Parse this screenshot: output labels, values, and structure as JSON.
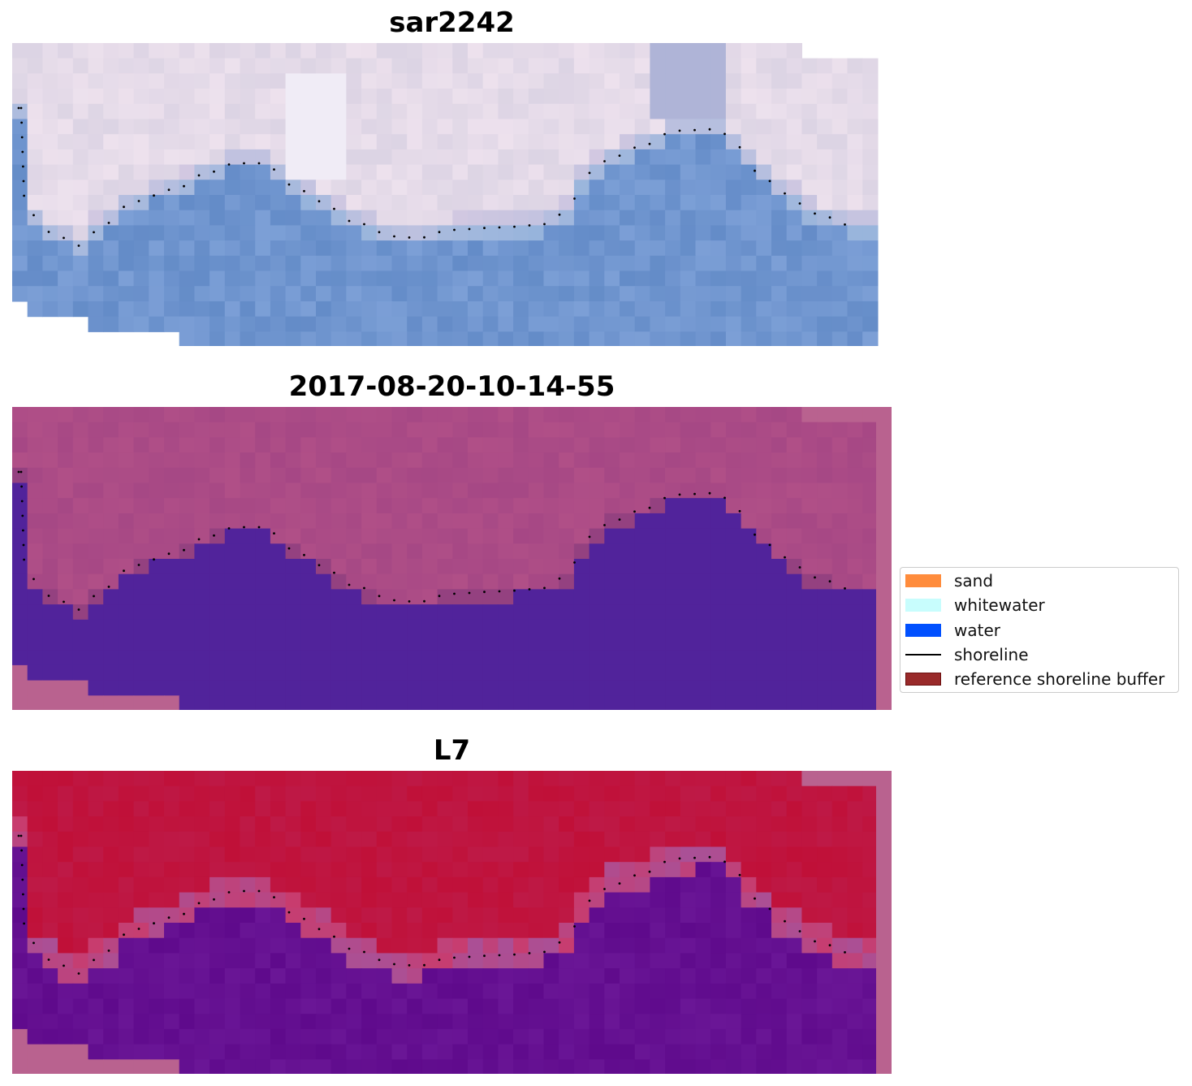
{
  "panels": [
    {
      "title": "sar2242",
      "style": "rgb"
    },
    {
      "title": "2017-08-20-10-14-55",
      "style": "class"
    },
    {
      "title": "L7",
      "style": "index"
    }
  ],
  "legend": {
    "items": [
      {
        "label": "sand",
        "color": "#ff8c3c",
        "kind": "patch"
      },
      {
        "label": "whitewater",
        "color": "#c8fdfd",
        "kind": "patch"
      },
      {
        "label": "water",
        "color": "#0050ff",
        "kind": "patch"
      },
      {
        "label": "shoreline",
        "color": "#000000",
        "kind": "line"
      },
      {
        "label": "reference shoreline buffer",
        "color": "#992a2a",
        "kind": "patch-edge"
      }
    ]
  },
  "colors": {
    "buffer": "#b9628f",
    "water_class": "#51239b",
    "land_class": "#b04f87",
    "land_index": "#c01038",
    "water_index": "#6a1696",
    "shoreline_dots": "#000000"
  }
}
